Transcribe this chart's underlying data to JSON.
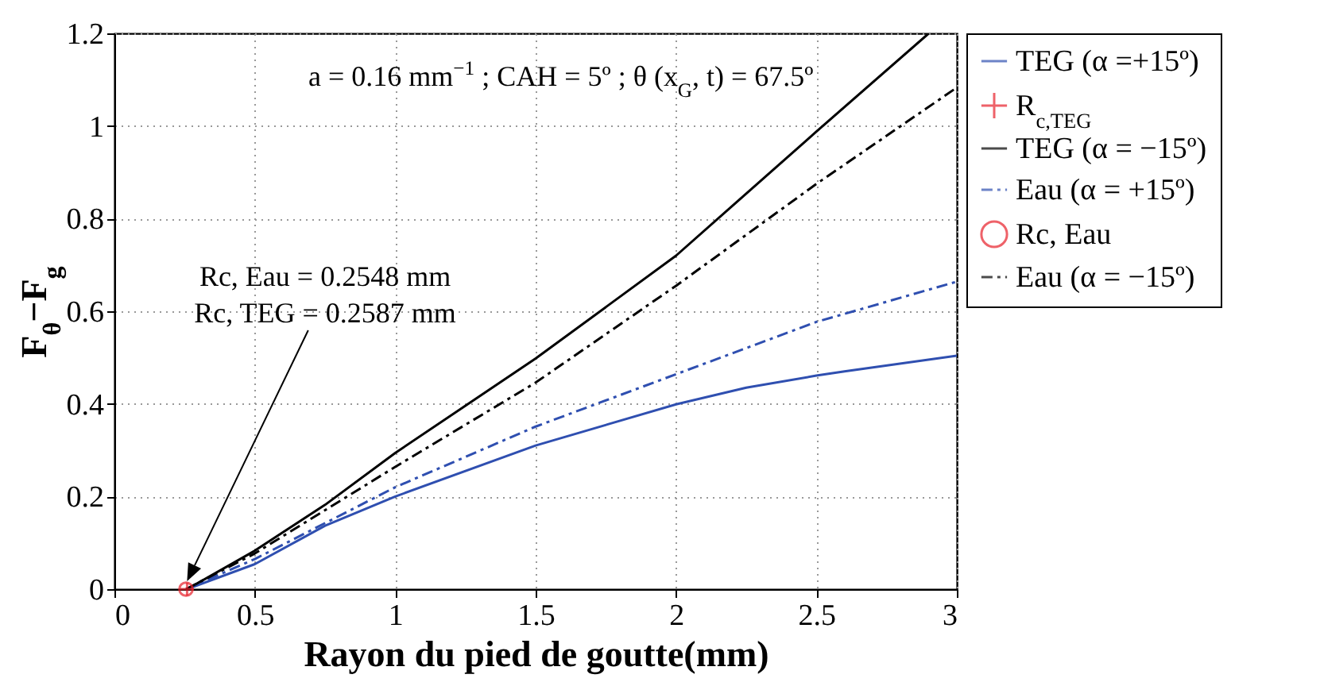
{
  "chart_data": {
    "type": "line",
    "xlabel": "Rayon du pied de goutte(mm)",
    "ylabel": "F$_{θ}$−F$_{g}$",
    "xlim": [
      0,
      3
    ],
    "ylim": [
      0,
      1.2
    ],
    "xticks": [
      0,
      0.5,
      1,
      1.5,
      2,
      2.5,
      3
    ],
    "yticks": [
      0,
      0.2,
      0.4,
      0.6,
      0.8,
      1,
      1.2
    ],
    "grid": true,
    "legend": "right",
    "annotations": [
      "a = 0.16 mm$^{−1}$ ; CAH = 5º ; θ (x$_{G}$, t) = 67.5º",
      "Rc, Eau = 0.2548 mm",
      "Rc, TEG = 0.2587 mm"
    ],
    "series": [
      {
        "name": "TEG (α =+15º)",
        "type": "line",
        "color": "#2f4fb0",
        "line_style": "solid",
        "x": [
          0.2587,
          0.5,
          0.75,
          1,
          1.5,
          2,
          2.25,
          2.5,
          2.6,
          3
        ],
        "values": [
          0,
          0.054,
          0.137,
          0.2,
          0.31,
          0.399,
          0.435,
          0.461,
          0.47,
          0.504
        ]
      },
      {
        "name": "R$_{c,TEG}$",
        "type": "scatter",
        "color": "#e8202a",
        "marker": "cross",
        "x": [
          0.2587
        ],
        "values": [
          0
        ]
      },
      {
        "name": "TEG (α = −15º)",
        "type": "line",
        "color": "#000000",
        "line_style": "solid",
        "x": [
          0.2587,
          0.5,
          0.75,
          1,
          1.5,
          2,
          2.5,
          2.9
        ],
        "values": [
          0,
          0.083,
          0.182,
          0.294,
          0.498,
          0.72,
          0.988,
          1.2
        ]
      },
      {
        "name": "Eau (α = +15º)",
        "type": "line",
        "color": "#2f4fb0",
        "line_style": "dashed",
        "x": [
          0.2548,
          0.5,
          1,
          1.5,
          2,
          2.5,
          3
        ],
        "values": [
          0,
          0.065,
          0.22,
          0.351,
          0.464,
          0.577,
          0.664
        ]
      },
      {
        "name": "Rc, Eau",
        "type": "scatter",
        "color": "#e8202a",
        "marker": "circle",
        "x": [
          0.2548
        ],
        "values": [
          0
        ]
      },
      {
        "name": "Eau (α = −15º)",
        "type": "line",
        "color": "#000000",
        "line_style": "dashed",
        "x": [
          0.2548,
          0.5,
          1,
          1.5,
          2,
          2.5,
          3
        ],
        "values": [
          0,
          0.077,
          0.264,
          0.446,
          0.655,
          0.875,
          1.083
        ]
      }
    ]
  }
}
